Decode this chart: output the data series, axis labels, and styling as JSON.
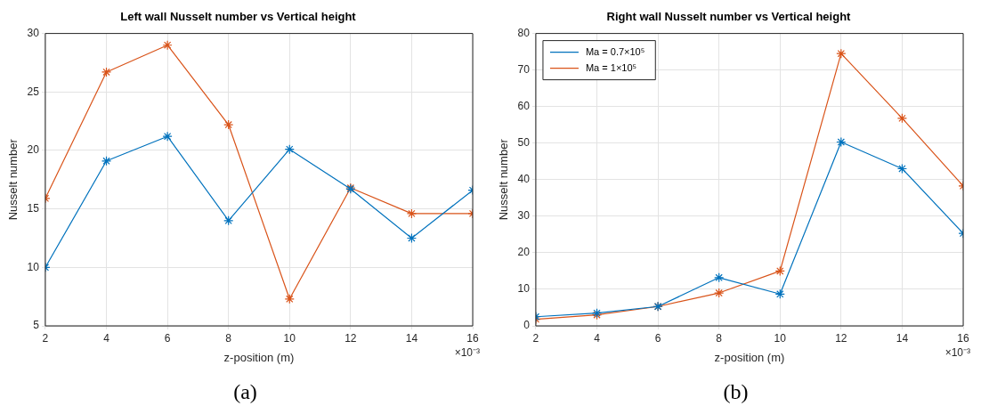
{
  "chart_data": [
    {
      "type": "line",
      "title": "Left wall Nusselt number vs Vertical height",
      "xlabel": "z-position (m)",
      "ylabel": "Nusselt number",
      "x": [
        2,
        4,
        6,
        8,
        10,
        12,
        14,
        16
      ],
      "series": [
        {
          "color": "#0072bd",
          "values": [
            10,
            19.1,
            21.2,
            14,
            20.1,
            16.7,
            12.5,
            16.6
          ]
        },
        {
          "color": "#d95319",
          "values": [
            15.9,
            26.7,
            29,
            22.2,
            7.3,
            16.8,
            14.6,
            14.6
          ]
        }
      ],
      "xlim": [
        2,
        16
      ],
      "xticks": [
        2,
        4,
        6,
        8,
        10,
        12,
        14,
        16
      ],
      "ylim": [
        5,
        30
      ],
      "yticks": [
        5,
        10,
        15,
        20,
        25,
        30
      ],
      "grid": true,
      "marker": "cross",
      "legend": false,
      "annotations": [
        "×10⁻³",
        "(a)"
      ]
    },
    {
      "type": "line",
      "title": "Right wall Nusselt number vs Vertical height",
      "xlabel": "z-position (m)",
      "ylabel": "Nusselt number",
      "x": [
        2,
        4,
        6,
        8,
        10,
        12,
        14,
        16
      ],
      "series": [
        {
          "name": "Ma = 0.7×10⁵",
          "color": "#0072bd",
          "values": [
            2.5,
            3.5,
            5.3,
            13.2,
            8.7,
            50.3,
            43,
            25.3
          ]
        },
        {
          "name": "Ma = 1×10⁵",
          "color": "#d95319",
          "values": [
            1.8,
            3,
            5.3,
            9,
            15,
            74.5,
            56.8,
            38.3
          ]
        }
      ],
      "xlim": [
        2,
        16
      ],
      "xticks": [
        2,
        4,
        6,
        8,
        10,
        12,
        14,
        16
      ],
      "ylim": [
        0,
        80
      ],
      "yticks": [
        0,
        10,
        20,
        30,
        40,
        50,
        60,
        70,
        80
      ],
      "grid": true,
      "marker": "cross",
      "legend": "top left",
      "annotations": [
        "×10⁻³",
        "(b)"
      ]
    }
  ]
}
